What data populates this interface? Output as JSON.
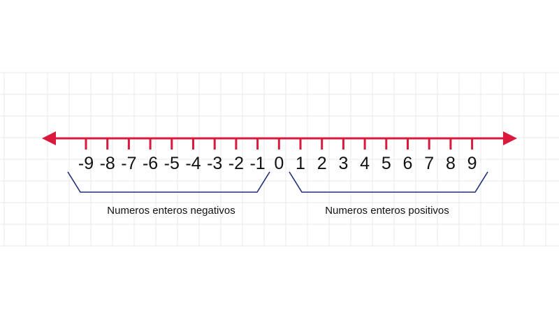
{
  "number_line": {
    "ticks": [
      "-9",
      "-8",
      "-7",
      "-6",
      "-5",
      "-4",
      "-3",
      "-2",
      "-1",
      "0",
      "1",
      "2",
      "3",
      "4",
      "5",
      "6",
      "7",
      "8",
      "9"
    ]
  },
  "groups": {
    "negative_label": "Numeros enteros negativos",
    "positive_label": "Numeros enteros positivos"
  },
  "colors": {
    "axis": "#d91a3c",
    "bracket": "#1f2f7a",
    "text": "#111111",
    "grid": "#e9e9e9"
  }
}
